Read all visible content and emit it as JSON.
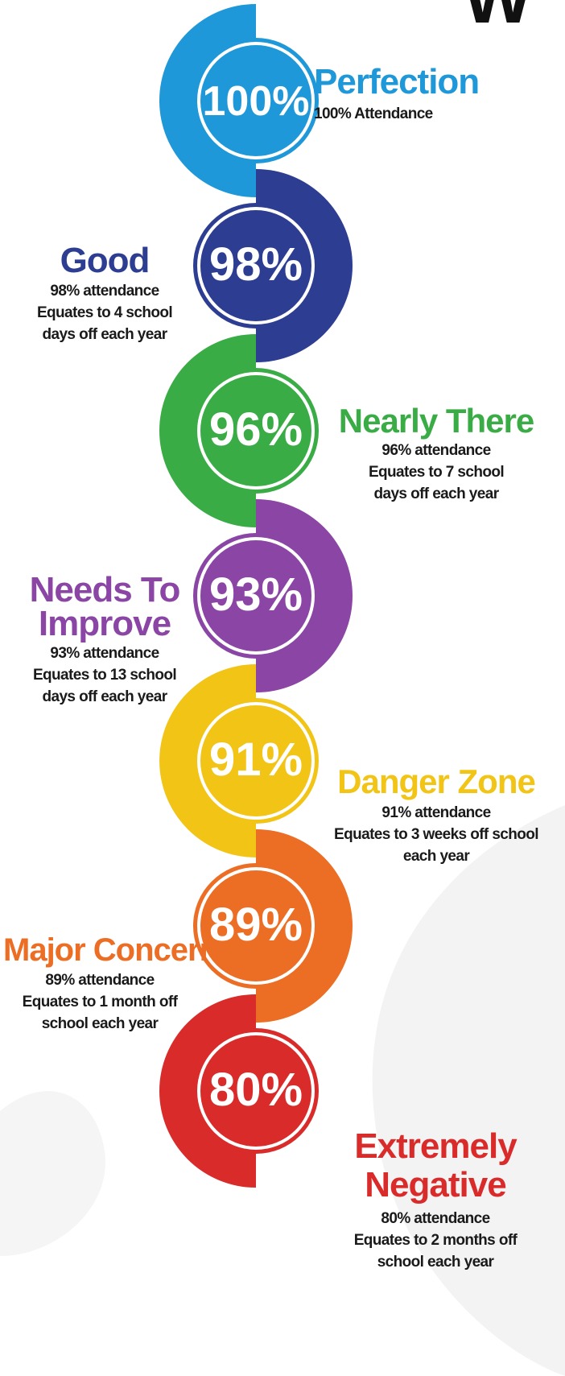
{
  "header_fragment": "W",
  "levels": [
    {
      "percent": "100%",
      "title": [
        "Perfection"
      ],
      "description": [
        "100% Attendance"
      ],
      "color": "#1e98d8"
    },
    {
      "percent": "98%",
      "title": [
        "Good"
      ],
      "description": [
        "98% attendance",
        "Equates to 4 school",
        "days off each year"
      ],
      "color": "#2c3d92"
    },
    {
      "percent": "96%",
      "title": [
        "Nearly There"
      ],
      "description": [
        "96% attendance",
        "Equates to 7 school",
        "days off each year"
      ],
      "color": "#3aac45"
    },
    {
      "percent": "93%",
      "title": [
        "Needs To",
        "Improve"
      ],
      "description": [
        "93% attendance",
        "Equates to 13 school",
        "days off each year"
      ],
      "color": "#8a45a5"
    },
    {
      "percent": "91%",
      "title": [
        "Danger Zone"
      ],
      "description": [
        "91% attendance",
        "Equates to 3 weeks off school",
        "each year"
      ],
      "color": "#f1c416"
    },
    {
      "percent": "89%",
      "title": [
        "Major Concern"
      ],
      "description": [
        "89% attendance",
        "Equates to 1 month off",
        "school each year"
      ],
      "color": "#ec6d24"
    },
    {
      "percent": "80%",
      "title": [
        "Extremely",
        "Negative"
      ],
      "description": [
        "80% attendance",
        "Equates to 2 months off",
        "school each year"
      ],
      "color": "#d92b2a"
    }
  ]
}
